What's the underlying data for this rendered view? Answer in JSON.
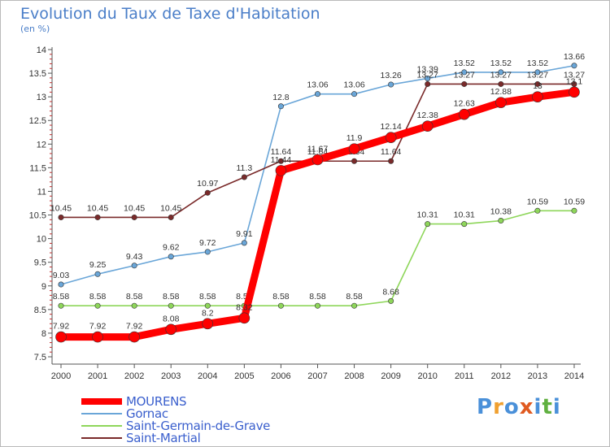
{
  "header": {
    "title": "Evolution du Taux de Taxe d'Habitation",
    "subtitle": "(en %)"
  },
  "logo": {
    "text": "Proxiti",
    "colors": [
      "#4a90d9",
      "#f0a030",
      "#4a90d9",
      "#e05a20",
      "#4a90d9",
      "#60b040",
      "#4a90d9"
    ]
  },
  "chart_data": {
    "type": "line",
    "title": "Evolution du Taux de Taxe d'Habitation",
    "ylabel": "(en %)",
    "xlabel": "",
    "x": [
      "2000",
      "2001",
      "2002",
      "2003",
      "2004",
      "2005",
      "2006",
      "2007",
      "2008",
      "2009",
      "2010",
      "2011",
      "2012",
      "2013",
      "2014"
    ],
    "ylim": [
      7.5,
      14
    ],
    "yticks": [
      "7.5",
      "8",
      "8.5",
      "9",
      "9.5",
      "10",
      "10.5",
      "11",
      "11.5",
      "12",
      "12.5",
      "13",
      "13.5",
      "14"
    ],
    "grid": false,
    "legend_position": "bottom-left",
    "series": [
      {
        "name": "MOURENS",
        "color": "#ff0000",
        "emphasis": true,
        "values": [
          7.92,
          7.92,
          7.92,
          8.08,
          8.2,
          8.32,
          11.44,
          11.67,
          11.9,
          12.14,
          12.38,
          12.63,
          12.88,
          13,
          13.1
        ],
        "labels": [
          "7.92",
          "7.92",
          "7.92",
          "8.08",
          "8.2",
          "8.32",
          "11.44",
          "11.67",
          "11.9",
          "12.14",
          "12.38",
          "12.63",
          "12.88",
          "13",
          "13.1"
        ]
      },
      {
        "name": "Gornac",
        "color": "#6aa6d8",
        "emphasis": false,
        "values": [
          9.03,
          9.25,
          9.43,
          9.62,
          9.72,
          9.91,
          12.8,
          13.06,
          13.06,
          13.26,
          13.39,
          13.52,
          13.52,
          13.52,
          13.66
        ],
        "labels": [
          "9.03",
          "9.25",
          "9.43",
          "9.62",
          "9.72",
          "9.91",
          "12.8",
          "13.06",
          "13.06",
          "13.26",
          "13.39",
          "13.52",
          "13.52",
          "13.52",
          "13.66"
        ]
      },
      {
        "name": "Saint-Germain-de-Grave",
        "color": "#8ed65a",
        "emphasis": false,
        "values": [
          8.58,
          8.58,
          8.58,
          8.58,
          8.58,
          8.58,
          8.58,
          8.58,
          8.58,
          8.68,
          10.31,
          10.31,
          10.38,
          10.59,
          10.59
        ],
        "labels": [
          "8.58",
          "8.58",
          "8.58",
          "8.58",
          "8.58",
          "8.58",
          "8.58",
          "8.58",
          "8.58",
          "8.68",
          "10.31",
          "10.31",
          "10.38",
          "10.59",
          "10.59"
        ]
      },
      {
        "name": "Saint-Martial",
        "color": "#7a2a2a",
        "emphasis": false,
        "values": [
          10.45,
          10.45,
          10.45,
          10.45,
          10.97,
          11.3,
          11.64,
          11.64,
          11.64,
          11.64,
          13.27,
          13.27,
          13.27,
          13.27,
          13.27
        ],
        "labels": [
          "10.45",
          "10.45",
          "10.45",
          "10.45",
          "10.97",
          "11.3",
          "11.64",
          "11.64",
          "11.64",
          "11.64",
          "13.27",
          "13.27",
          "13.27",
          "13.27",
          "13.27"
        ]
      }
    ]
  }
}
